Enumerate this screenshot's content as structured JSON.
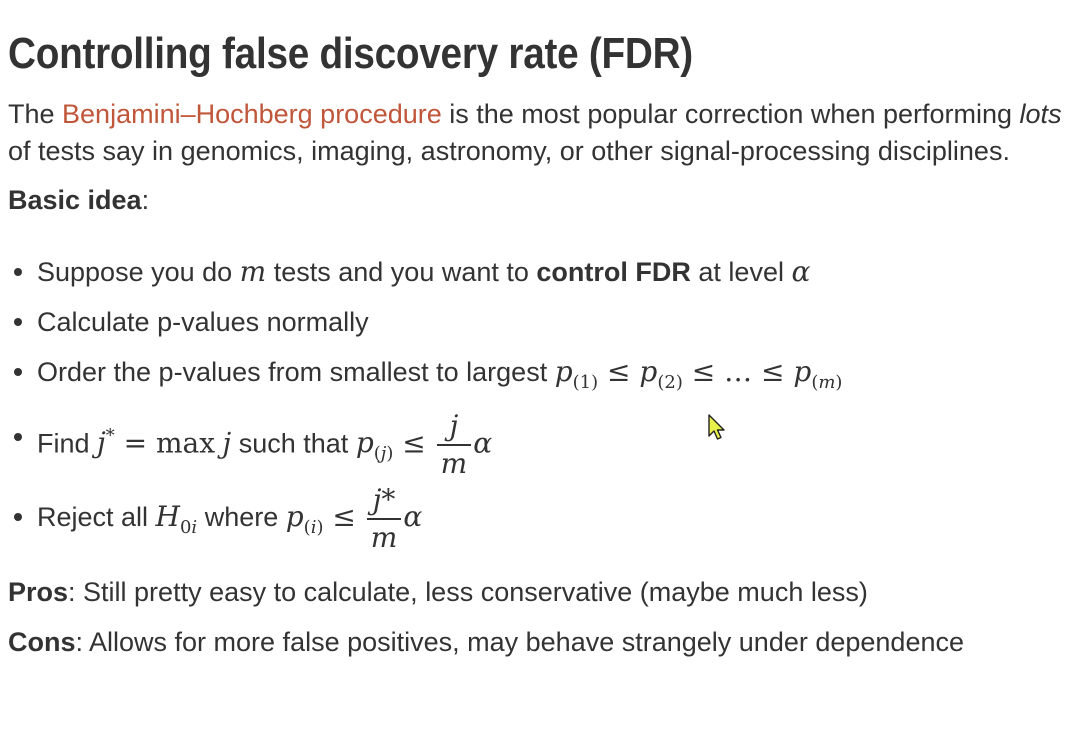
{
  "slide": {
    "title": "Controlling false discovery rate (FDR)",
    "intro": {
      "before": "The ",
      "link": "Benjamini–Hochberg procedure",
      "after": " is the most popular correction when performing ",
      "emph": "lots",
      "rest": " of tests say in genomics, imaging, astronomy, or other signal-processing disciplines."
    },
    "basic_idea": {
      "label": "Basic idea",
      "colon": ":"
    },
    "bullets": [
      {
        "t1": "Suppose you do ",
        "m": "m",
        "t2": " tests and you want to ",
        "bold": "control FDR",
        "t3": " at level ",
        "alpha": "α"
      },
      {
        "t1": "Calculate p-values normally"
      },
      {
        "t1": "Order the p-values from smallest to largest ",
        "p": "p",
        "s1": "(1)",
        "leq1": " ≤ ",
        "s2": "(2)",
        "leq2": " ≤ … ≤ ",
        "sm_open": "(",
        "sm_m": "m",
        "sm_close": ")"
      },
      {
        "t1": "Find ",
        "jstar": "j",
        "star": "*",
        "eq": " = ",
        "max": "max",
        "j": "j",
        "t2": " such that ",
        "p": "p",
        "sub_open": "(",
        "sub_j": "j",
        "sub_close": ")",
        "leq": " ≤ ",
        "num": "j",
        "den": "m",
        "alpha": "α"
      },
      {
        "t1": "Reject all ",
        "H": "H",
        "H_sub": "0",
        "H_sub_i": "i",
        "t2": " where ",
        "p": "p",
        "sub_open": "(",
        "sub_i": "i",
        "sub_close": ")",
        "leq": " ≤ ",
        "num": "j*",
        "den": "m",
        "alpha": "α"
      }
    ],
    "pros": {
      "label": "Pros",
      "text": ": Still pretty easy to calculate, less conservative (maybe much less)"
    },
    "cons": {
      "label": "Cons",
      "text": ": Allows for more false positives, may behave strangely under dependence"
    }
  },
  "colors": {
    "text": "#333333",
    "link": "#c0563a",
    "background": "#ffffff"
  },
  "cursor_icon": "mouse-pointer-icon"
}
